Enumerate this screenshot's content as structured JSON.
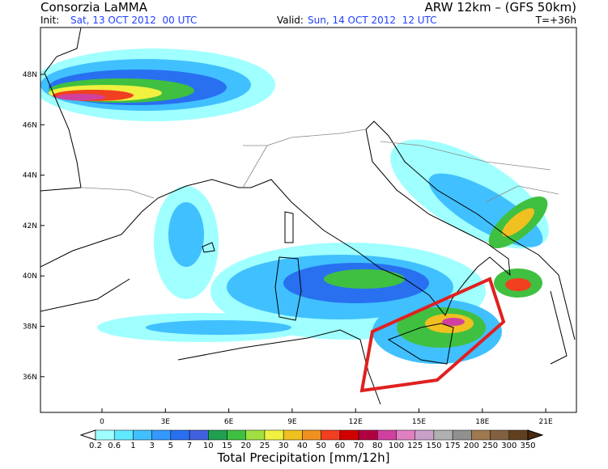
{
  "header": {
    "title": "Consorzia LaMMA",
    "model": "ARW 12km – (GFS 50km)",
    "init_label": "Init:",
    "init": "Sat, 13 OCT 2012  00 UTC",
    "valid_label": "Valid:",
    "valid": "Sun, 14 OCT 2012  12 UTC",
    "lead": "T=+36h"
  },
  "latitude_labels": [
    "48N",
    "46N",
    "44N",
    "42N",
    "40N",
    "38N",
    "36N"
  ],
  "longitude_labels": [
    "0",
    "3E",
    "6E",
    "9E",
    "12E",
    "15E",
    "18E",
    "21E"
  ],
  "colorbar": {
    "labels": [
      "0.2",
      "0.6",
      "1",
      "3",
      "5",
      "7",
      "10",
      "15",
      "20",
      "25",
      "30",
      "40",
      "50",
      "60",
      "70",
      "80",
      "100",
      "125",
      "150",
      "175",
      "200",
      "250",
      "300",
      "350"
    ],
    "title": "Total Precipitation [mm/12h]"
  }
}
